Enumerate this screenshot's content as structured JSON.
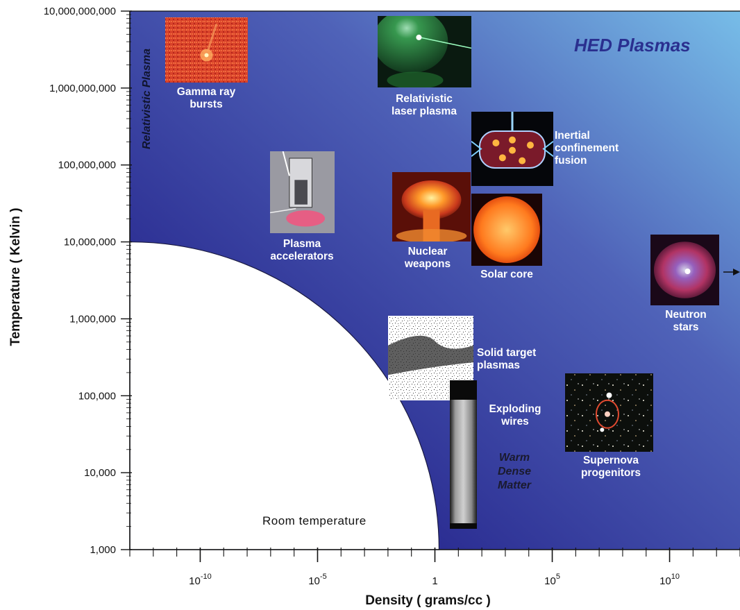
{
  "chart_data": {
    "type": "scatter",
    "title": "",
    "xlabel": "Density ( grams/cc )",
    "ylabel": "Temperature ( Kelvin )",
    "x_scale": "log",
    "y_scale": "log",
    "xlim": [
      1e-13,
      10000000000000.0
    ],
    "ylim": [
      1000,
      10000000000
    ],
    "x_ticks": [
      {
        "value": 1e-10,
        "base": "10",
        "exp": "-10"
      },
      {
        "value": 1e-05,
        "base": "10",
        "exp": "-5"
      },
      {
        "value": 1,
        "base": "1",
        "exp": ""
      },
      {
        "value": 100000.0,
        "base": "10",
        "exp": "5"
      },
      {
        "value": 10000000000.0,
        "base": "10",
        "exp": "10"
      }
    ],
    "y_ticks": [
      {
        "value": 1000,
        "label": "1,000"
      },
      {
        "value": 10000,
        "label": "10,000"
      },
      {
        "value": 100000,
        "label": "100,000"
      },
      {
        "value": 1000000,
        "label": "1,000,000"
      },
      {
        "value": 10000000,
        "label": "10,000,000"
      },
      {
        "value": 100000000,
        "label": "100,000,000"
      },
      {
        "value": 1000000000,
        "label": "1,000,000,000"
      },
      {
        "value": 10000000000,
        "label": "10,000,000,000"
      }
    ],
    "regions": {
      "hed_label": "HED Plasmas",
      "relativistic_label": "Relativistic Plasma",
      "room_label": "Room temperature",
      "wdm_lines": [
        "Warm",
        "Dense",
        "Matter"
      ]
    },
    "points": [
      {
        "id": "gamma-ray-bursts",
        "label_lines": [
          "Gamma ray",
          "bursts"
        ],
        "x": 2e-12,
        "y": 3000000000,
        "image": "orange-noise"
      },
      {
        "id": "relativistic-laser-plasma",
        "label_lines": [
          "Relativistic",
          "laser plasma"
        ],
        "x": 0.5,
        "y": 3000000000,
        "image": "green-laser"
      },
      {
        "id": "inertial-confinement-fusion",
        "label_lines": [
          "Inertial",
          "confinement",
          "fusion"
        ],
        "x": 300.0,
        "y": 100000000,
        "image": "hohlraum"
      },
      {
        "id": "plasma-accelerators",
        "label_lines": [
          "Plasma",
          "accelerators"
        ],
        "x": 3e-06,
        "y": 30000000,
        "image": "device"
      },
      {
        "id": "nuclear-weapons",
        "label_lines": [
          "Nuclear",
          "weapons"
        ],
        "x": 0.1,
        "y": 20000000,
        "image": "mushroom"
      },
      {
        "id": "solar-core",
        "label_lines": [
          "Solar core"
        ],
        "x": 150.0,
        "y": 15000000,
        "image": "sun"
      },
      {
        "id": "neutron-stars",
        "label_lines": [
          "Neutron",
          "stars"
        ],
        "x": 10000000000000.0,
        "y": 3000000,
        "image": "nebula"
      },
      {
        "id": "solid-target-plasmas",
        "label_lines": [
          "Solid target",
          "plasmas"
        ],
        "x": 0.1,
        "y": 200000,
        "image": "speckle"
      },
      {
        "id": "exploding-wires",
        "label_lines": [
          "Exploding",
          "wires"
        ],
        "x": 10,
        "y": 30000,
        "image": "wire"
      },
      {
        "id": "supernova-progenitors",
        "label_lines": [
          "Supernova",
          "progenitors"
        ],
        "x": 10000000.0,
        "y": 50000,
        "image": "starfield"
      }
    ]
  },
  "colors": {
    "bg_light": "#6fb3e3",
    "bg_dark": "#26268a",
    "axis": "#111111",
    "room_region": "#ffffff",
    "label": "#ffffff"
  }
}
